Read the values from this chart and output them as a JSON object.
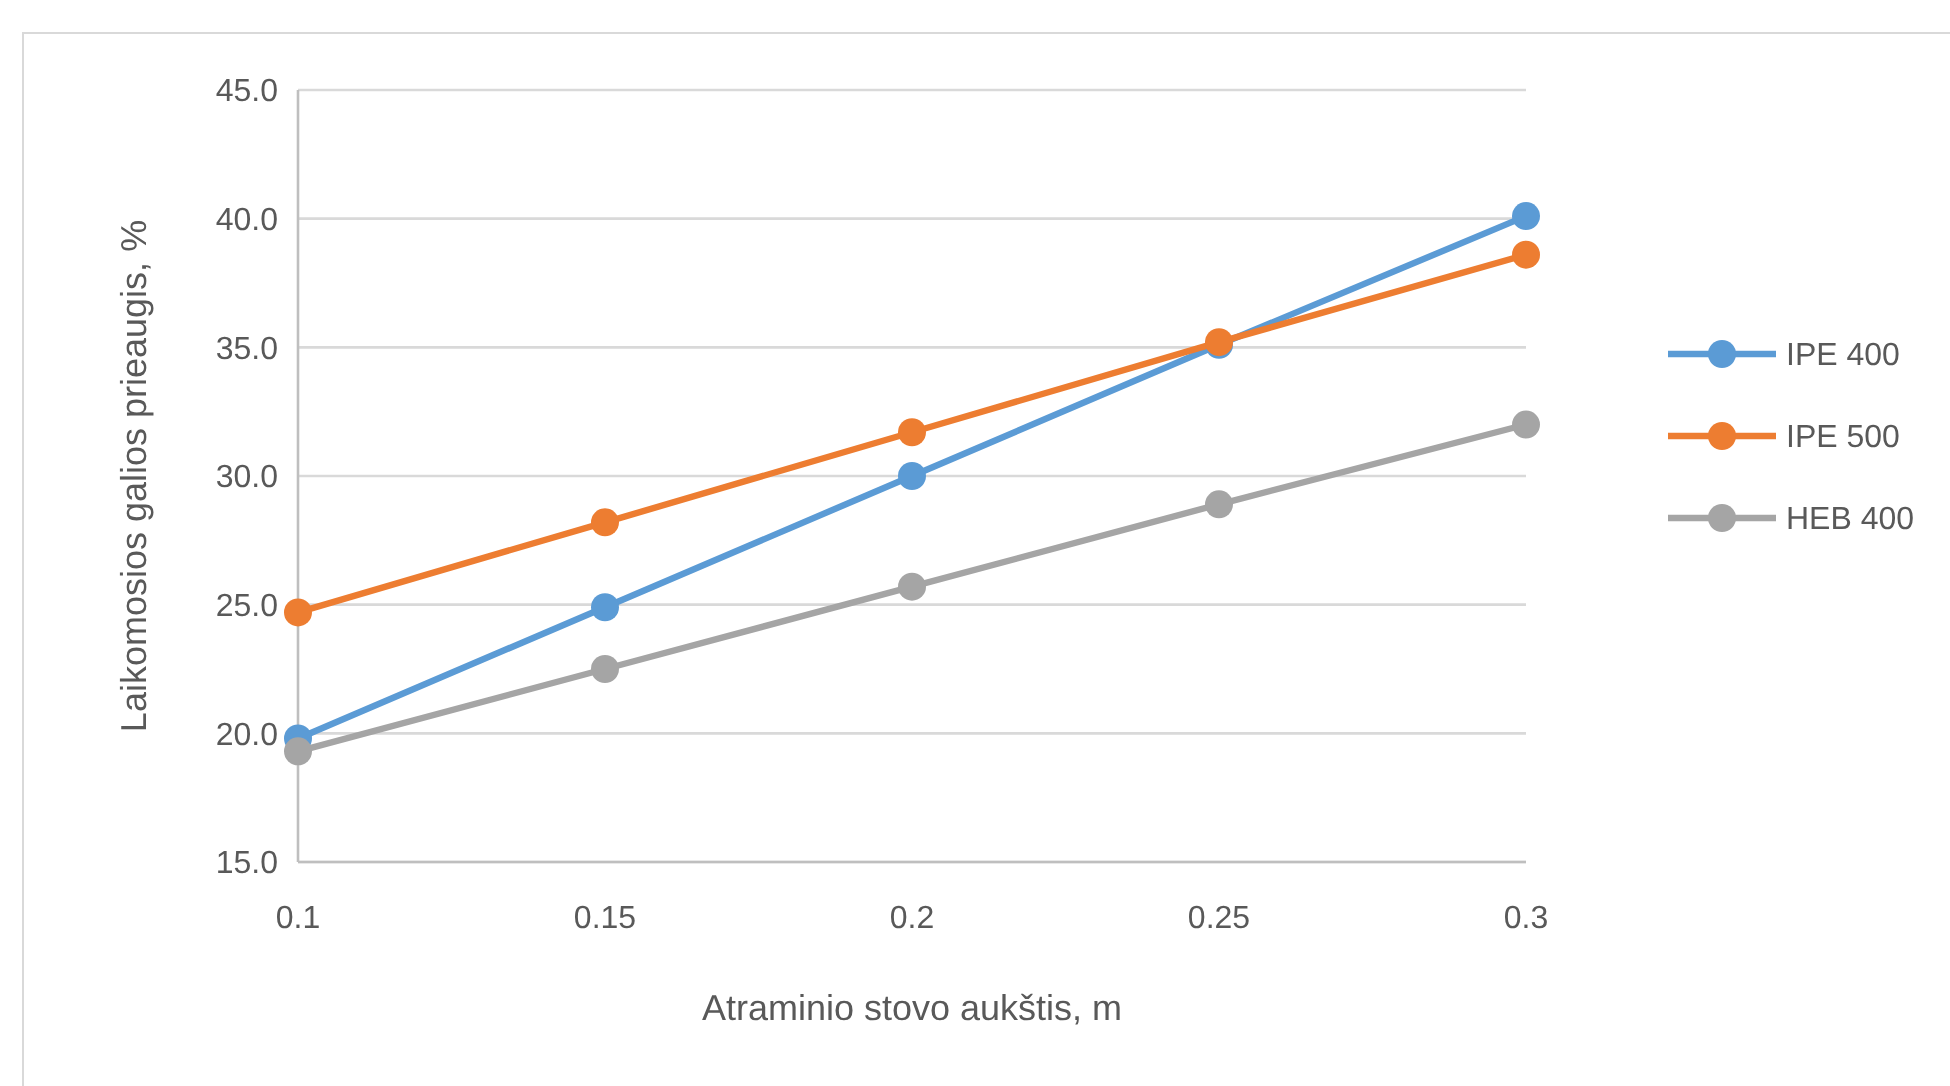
{
  "chart_data": {
    "type": "line",
    "xlabel": "Atraminio stovo aukštis, m",
    "ylabel": "Laikomosios galios prieaugis, %",
    "x": [
      0.1,
      0.15,
      0.2,
      0.25,
      0.3
    ],
    "series": [
      {
        "name": "IPE 400",
        "color": "#5b9bd5",
        "values": [
          19.8,
          24.9,
          30.0,
          35.1,
          40.1
        ]
      },
      {
        "name": "IPE 500",
        "color": "#ed7d31",
        "values": [
          24.7,
          28.2,
          31.7,
          35.2,
          38.6
        ]
      },
      {
        "name": "HEB 400",
        "color": "#a5a5a5",
        "values": [
          19.3,
          22.5,
          25.7,
          28.9,
          32.0
        ]
      }
    ],
    "xlim": [
      0.1,
      0.3
    ],
    "xticks": [
      0.1,
      0.15,
      0.2,
      0.25,
      0.3
    ],
    "ylim": [
      15,
      45
    ],
    "yticks": [
      {
        "value": 15,
        "label": "15.0"
      },
      {
        "value": 20,
        "label": "20.0"
      },
      {
        "value": 25,
        "label": "25.0"
      },
      {
        "value": 30,
        "label": "30.0"
      },
      {
        "value": 35,
        "label": "35.0"
      },
      {
        "value": 40,
        "label": "40.0"
      },
      {
        "value": 45,
        "label": "45.0"
      }
    ],
    "grid": "y",
    "legend": "right",
    "marker": "circle",
    "line_style": "solid"
  }
}
